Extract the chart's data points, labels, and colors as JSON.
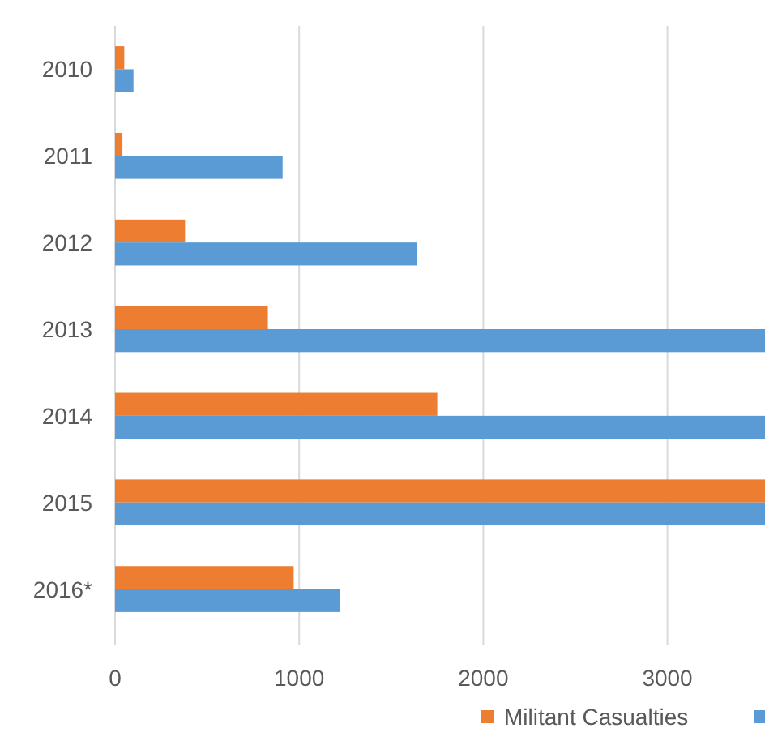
{
  "chart_data": {
    "type": "bar",
    "orientation": "horizontal",
    "categories": [
      "2010",
      "2011",
      "2012",
      "2013",
      "2014",
      "2015",
      "2016*"
    ],
    "series": [
      {
        "name": "Militant Casualties",
        "color": "#ed7d31",
        "values": [
          50,
          40,
          380,
          830,
          1750,
          3530,
          970
        ]
      },
      {
        "color": "#5b9bd5",
        "values": [
          100,
          910,
          1640,
          3530,
          3530,
          3530,
          1220
        ]
      }
    ],
    "xlim": [
      0,
      3530
    ],
    "xticks": [
      0,
      1000,
      2000,
      3000
    ],
    "grid": "x",
    "legend": "bottom"
  }
}
